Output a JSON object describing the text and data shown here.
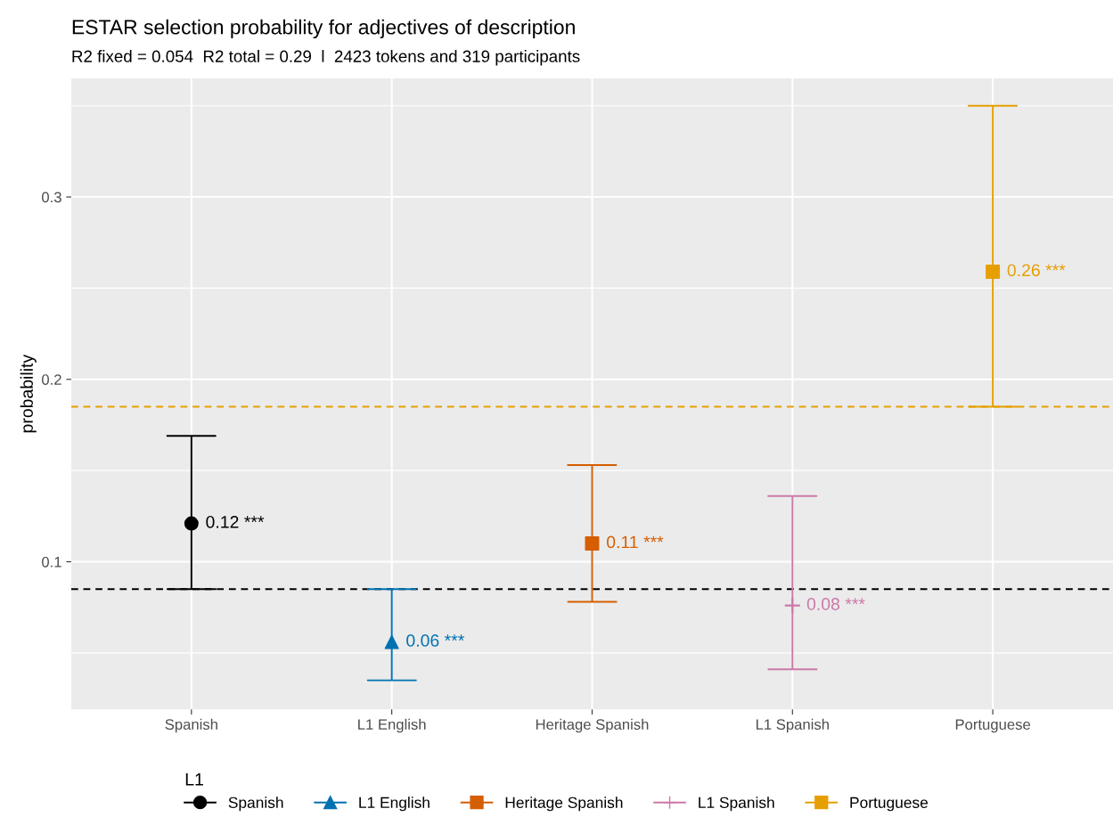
{
  "chart_data": {
    "type": "scatter",
    "title": "ESTAR selection probability for adjectives of description",
    "subtitle": "R2 fixed = 0.054  R2 total = 0.29  l  2423 tokens and 319 participants",
    "ylabel": "probability",
    "legend_title": "L1",
    "categories": [
      "Spanish",
      "L1 English",
      "Heritage Spanish",
      "L1 Spanish",
      "Portuguese"
    ],
    "series": [
      {
        "name": "Spanish",
        "color": "#000000",
        "marker": "circle",
        "values": [
          0.121,
          null,
          null,
          null,
          null
        ],
        "errors": [
          [
            0.085,
            0.169
          ],
          null,
          null,
          null,
          null
        ],
        "value_labels": [
          "0.12 ***",
          null,
          null,
          null,
          null
        ]
      },
      {
        "name": "L1 English",
        "color": "#0072b2",
        "marker": "triangle",
        "values": [
          null,
          0.056,
          null,
          null,
          null
        ],
        "errors": [
          null,
          [
            0.035,
            0.085
          ],
          null,
          null,
          null
        ],
        "value_labels": [
          null,
          "0.06 ***",
          null,
          null,
          null
        ]
      },
      {
        "name": "Heritage Spanish",
        "color": "#d55e00",
        "marker": "square",
        "values": [
          null,
          null,
          0.11,
          null,
          null
        ],
        "errors": [
          null,
          null,
          [
            0.078,
            0.153
          ],
          null,
          null
        ],
        "value_labels": [
          null,
          null,
          "0.11 ***",
          null,
          null
        ]
      },
      {
        "name": "L1 Spanish",
        "color": "#cc79a7",
        "marker": "cross",
        "values": [
          null,
          null,
          null,
          0.076,
          null
        ],
        "errors": [
          null,
          null,
          null,
          [
            0.041,
            0.136
          ],
          null
        ],
        "value_labels": [
          null,
          null,
          null,
          "0.08 ***",
          null
        ]
      },
      {
        "name": "Portuguese",
        "color": "#e69f00",
        "marker": "square",
        "values": [
          null,
          null,
          null,
          null,
          0.259
        ],
        "errors": [
          null,
          null,
          null,
          null,
          [
            0.185,
            0.35
          ]
        ],
        "value_labels": [
          null,
          null,
          null,
          null,
          "0.26 ***"
        ]
      }
    ],
    "ref_lines": [
      {
        "axis": "y",
        "value": 0.085,
        "color": "#000000",
        "line_style": "dashed"
      },
      {
        "axis": "y",
        "value": 0.185,
        "color": "#e69f00",
        "line_style": "dashed"
      }
    ],
    "ylim": [
      0.019,
      0.365
    ],
    "yticks": [
      0.1,
      0.2,
      0.3
    ],
    "grid": true,
    "legend": "bottom"
  }
}
